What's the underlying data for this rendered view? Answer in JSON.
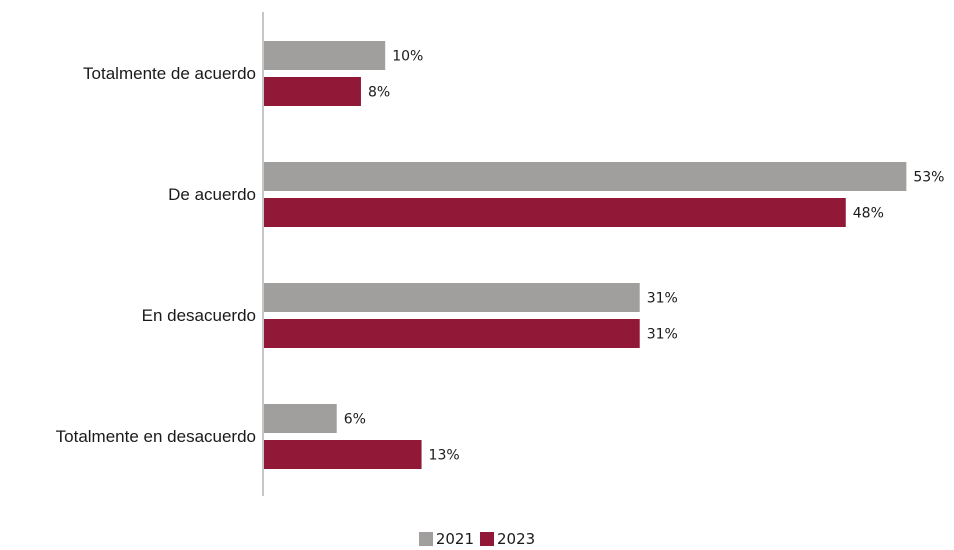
{
  "chart_data": {
    "type": "bar",
    "orientation": "horizontal",
    "categories": [
      "Totalmente de acuerdo",
      "De acuerdo",
      "En desacuerdo",
      "Totalmente en desacuerdo"
    ],
    "series": [
      {
        "name": "2021",
        "values": [
          10,
          53,
          31,
          6
        ],
        "labels": [
          "10%",
          "53%",
          "31%",
          "6%"
        ],
        "color": "#a09f9d"
      },
      {
        "name": "2023",
        "values": [
          8,
          48,
          31,
          13
        ],
        "labels": [
          "8%",
          "48%",
          "31%",
          "13%"
        ],
        "color": "#921838"
      }
    ],
    "xlim": [
      0,
      53
    ],
    "unit": "%",
    "grid": false,
    "legend_position": "bottom-center"
  }
}
